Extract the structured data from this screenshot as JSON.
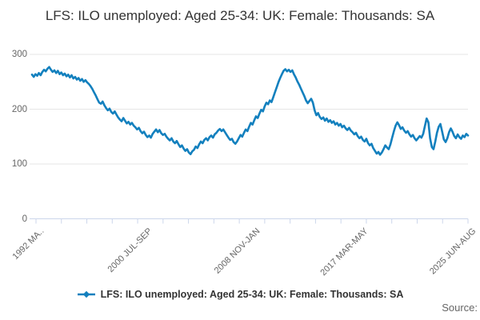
{
  "title": "LFS: ILO unemployed: Aged 25-34: UK: Female: Thousands: SA",
  "legend": {
    "label": "LFS: ILO unemployed: Aged 25-34: UK: Female: Thousands: SA"
  },
  "source_label": "Source:",
  "colors": {
    "series": "#1380be",
    "grid": "#e6e6e6",
    "axis": "#ccd6eb",
    "muted_text": "#666666",
    "title_text": "#333333"
  },
  "chart_data": {
    "type": "line",
    "title": "LFS: ILO unemployed: Aged 25-34: UK: Female: Thousands: SA",
    "xlabel": "",
    "ylabel": "",
    "ylim": [
      0,
      300
    ],
    "y_ticks": [
      0,
      100,
      200,
      300
    ],
    "x_tick_labels": [
      "1992 MA..",
      "2000 JUL-SEP",
      "2008 NOV-JAN",
      "2017 MAR-MAY",
      "2025 JUN-AUG"
    ],
    "grid": "horizontal-only",
    "legend_position": "bottom-center",
    "series": [
      {
        "name": "LFS: ILO unemployed: Aged 25-34: UK: Female: Thousands: SA",
        "values": [
          263,
          259,
          264,
          261,
          266,
          262,
          268,
          272,
          269,
          274,
          277,
          272,
          268,
          271,
          266,
          270,
          264,
          267,
          262,
          265,
          260,
          263,
          258,
          262,
          256,
          259,
          254,
          257,
          252,
          255,
          250,
          253,
          249,
          246,
          242,
          237,
          231,
          225,
          218,
          212,
          210,
          214,
          207,
          202,
          198,
          201,
          195,
          192,
          196,
          190,
          185,
          181,
          178,
          184,
          179,
          174,
          177,
          172,
          175,
          170,
          167,
          163,
          166,
          160,
          156,
          159,
          153,
          149,
          152,
          148,
          155,
          159,
          163,
          158,
          162,
          156,
          153,
          155,
          150,
          146,
          143,
          147,
          141,
          138,
          142,
          136,
          131,
          134,
          128,
          124,
          127,
          121,
          118,
          123,
          126,
          132,
          129,
          136,
          141,
          138,
          144,
          147,
          143,
          149,
          152,
          148,
          154,
          157,
          161,
          164,
          160,
          163,
          158,
          153,
          148,
          144,
          146,
          140,
          137,
          141,
          147,
          153,
          150,
          157,
          163,
          160,
          168,
          175,
          172,
          180,
          187,
          184,
          192,
          199,
          196,
          205,
          212,
          209,
          216,
          213,
          222,
          231,
          240,
          249,
          257,
          264,
          270,
          273,
          269,
          272,
          268,
          271,
          264,
          258,
          251,
          245,
          238,
          231,
          224,
          216,
          211,
          215,
          219,
          212,
          198,
          189,
          193,
          186,
          182,
          185,
          179,
          183,
          177,
          180,
          175,
          178,
          172,
          175,
          170,
          173,
          167,
          170,
          165,
          162,
          166,
          161,
          158,
          154,
          157,
          151,
          147,
          150,
          144,
          141,
          146,
          138,
          134,
          137,
          129,
          124,
          119,
          122,
          117,
          121,
          127,
          134,
          130,
          127,
          136,
          148,
          160,
          170,
          176,
          171,
          164,
          167,
          161,
          157,
          160,
          154,
          150,
          153,
          147,
          143,
          147,
          151,
          148,
          155,
          169,
          183,
          176,
          147,
          131,
          127,
          141,
          157,
          168,
          173,
          159,
          145,
          140,
          147,
          158,
          165,
          159,
          151,
          147,
          154,
          149,
          146,
          152,
          149,
          155,
          152
        ]
      }
    ]
  }
}
